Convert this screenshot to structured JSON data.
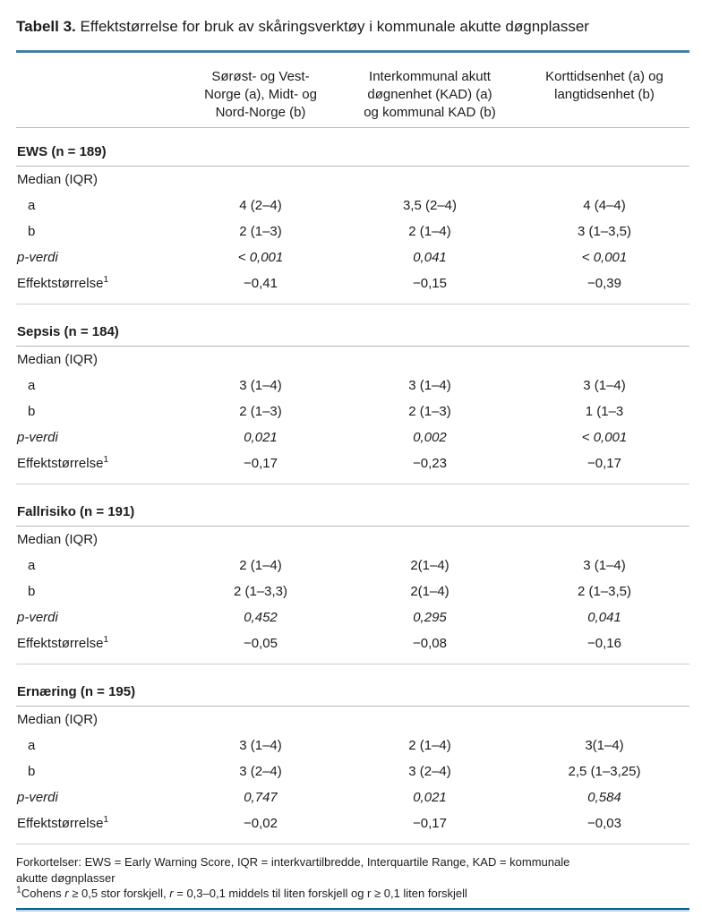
{
  "title": {
    "label": "Tabell 3.",
    "caption": "Effektstørrelse for bruk av skåringsverktøy i kommunale akutte døgnplasser"
  },
  "colors": {
    "top_rule": "#44809e",
    "bottom_rule_dark": "#10618f",
    "bottom_rule_light": "#bcd8e8",
    "divider_gray": "#b9b9b9",
    "section_gray": "#cecece",
    "text": "#1c1c1c"
  },
  "table": {
    "column_headers": [
      {
        "lines": [
          "Sørøst- og Vest-",
          "Norge (a), Midt- og",
          "Nord-Norge (b)"
        ]
      },
      {
        "lines": [
          "Interkommunal akutt",
          "døgnenhet (KAD) (a)",
          "og kommunal KAD (b)"
        ]
      },
      {
        "lines": [
          "Korttidsenhet (a) og",
          "langtidsenhet (b)"
        ]
      }
    ],
    "row_labels": {
      "median": "Median (IQR)",
      "a": "a",
      "b": "b",
      "p": "p-verdi",
      "effect": "Effektstørrelse",
      "effect_sup": "1"
    },
    "sections": [
      {
        "header": "EWS (n = 189)",
        "rows": {
          "a": [
            "4 (2–4)",
            "3,5 (2–4)",
            "4 (4–4)"
          ],
          "b": [
            "2 (1–3)",
            "2 (1–4)",
            "3 (1–3,5)"
          ],
          "p": [
            "< 0,001",
            "0,041",
            "< 0,001"
          ],
          "effect": [
            "−0,41",
            "−0,15",
            "−0,39"
          ]
        }
      },
      {
        "header": "Sepsis (n = 184)",
        "rows": {
          "a": [
            "3 (1–4)",
            "3 (1–4)",
            "3 (1–4)"
          ],
          "b": [
            "2 (1–3)",
            "2 (1–3)",
            "1 (1–3"
          ],
          "p": [
            "0,021",
            "0,002",
            "< 0,001"
          ],
          "effect": [
            "−0,17",
            "−0,23",
            "−0,17"
          ]
        }
      },
      {
        "header": "Fallrisiko (n = 191)",
        "rows": {
          "a": [
            "2 (1–4)",
            "2(1–4)",
            "3 (1–4)"
          ],
          "b": [
            "2 (1–3,3)",
            "2(1–4)",
            "2 (1–3,5)"
          ],
          "p": [
            "0,452",
            "0,295",
            "0,041"
          ],
          "effect": [
            "−0,05",
            "−0,08",
            "−0,16"
          ]
        }
      },
      {
        "header": "Ernæring (n = 195)",
        "rows": {
          "a": [
            "3 (1–4)",
            "2 (1–4)",
            "3(1–4)"
          ],
          "b": [
            "3 (2–4)",
            "3 (2–4)",
            "2,5 (1–3,25)"
          ],
          "p": [
            "0,747",
            "0,021",
            "0,584"
          ],
          "effect": [
            "−0,02",
            "−0,17",
            "−0,03"
          ]
        }
      }
    ]
  },
  "footnotes": {
    "abbreviations": "Forkortelser: EWS = Early Warning Score, IQR = interkvartilbredde, Interquartile Range, KAD = kommunale akutte døgnplasser",
    "cohens": {
      "sup": "1",
      "part1": "Cohens",
      "r1": "r",
      "part2": "≥ 0,5 stor forskjell,",
      "r2": "r",
      "part3": "= 0,3–0,1 middels til liten forskjell og r ≥ 0,1 liten forskjell"
    }
  }
}
